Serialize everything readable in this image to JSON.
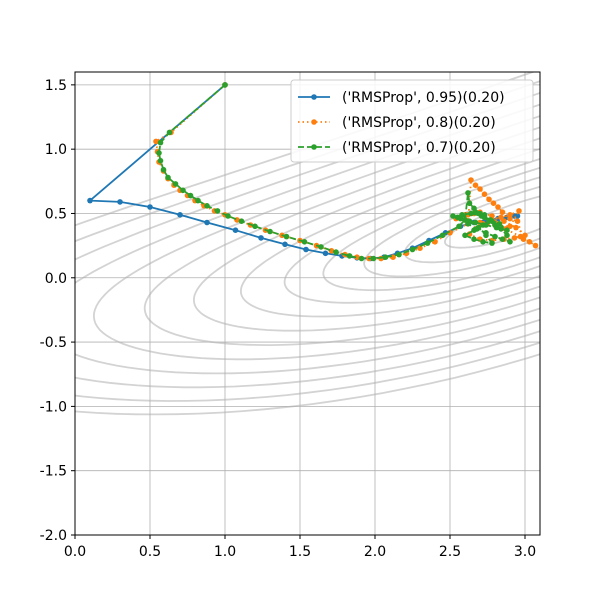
{
  "chart_data": {
    "type": "line",
    "title": "",
    "xlabel": "",
    "ylabel": "",
    "xlim": [
      0.0,
      3.1
    ],
    "ylim": [
      -2.0,
      1.6
    ],
    "grid": true,
    "legend_position": "top-right",
    "x_ticks": [
      0.0,
      0.5,
      1.0,
      1.5,
      2.0,
      2.5,
      3.0
    ],
    "x_tick_labels": [
      "0.0",
      "0.5",
      "1.0",
      "1.5",
      "2.0",
      "2.5",
      "3.0"
    ],
    "y_ticks": [
      1.5,
      1.0,
      0.5,
      0.0,
      -0.5,
      -1.0,
      -1.5,
      -2.0
    ],
    "y_tick_labels": [
      "1.5",
      "1.0",
      "0.5",
      "0.0",
      "-0.5",
      "-1.0",
      "-1.5",
      "-2.0"
    ],
    "contour": {
      "description": "Light grey contour lines of the objective surface, minimum near (2.9, 0.45)",
      "color": "#d3d3d3",
      "center": [
        2.95,
        0.45
      ],
      "levels": [
        0.05,
        0.12,
        0.22,
        0.35,
        0.5,
        0.7,
        0.95,
        1.25,
        1.6,
        2.0,
        2.45,
        2.95,
        3.5
      ]
    },
    "series": [
      {
        "name": "('RMSProp', 0.95)(0.20)",
        "color": "#1f77b4",
        "line_style": "solid",
        "marker": "circle",
        "points": [
          [
            1.0,
            1.5
          ],
          [
            0.1,
            0.6
          ],
          [
            0.3,
            0.59
          ],
          [
            0.5,
            0.55
          ],
          [
            0.7,
            0.49
          ],
          [
            0.88,
            0.43
          ],
          [
            1.07,
            0.37
          ],
          [
            1.24,
            0.31
          ],
          [
            1.4,
            0.26
          ],
          [
            1.54,
            0.22
          ],
          [
            1.67,
            0.19
          ],
          [
            1.78,
            0.17
          ],
          [
            1.88,
            0.155
          ],
          [
            1.97,
            0.15
          ],
          [
            2.06,
            0.16
          ],
          [
            2.15,
            0.19
          ],
          [
            2.25,
            0.23
          ],
          [
            2.36,
            0.29
          ],
          [
            2.47,
            0.35
          ],
          [
            2.57,
            0.4
          ],
          [
            2.66,
            0.43
          ],
          [
            2.74,
            0.45
          ],
          [
            2.82,
            0.46
          ],
          [
            2.88,
            0.47
          ],
          [
            2.93,
            0.48
          ],
          [
            2.95,
            0.48
          ]
        ]
      },
      {
        "name": "('RMSProp', 0.8)(0.20)",
        "color": "#ff7f0e",
        "line_style": "dotted",
        "marker": "circle",
        "points": [
          [
            1.0,
            1.5
          ],
          [
            0.64,
            1.13
          ],
          [
            0.54,
            1.06
          ],
          [
            0.55,
            0.98
          ],
          [
            0.56,
            0.9
          ],
          [
            0.59,
            0.83
          ],
          [
            0.62,
            0.77
          ],
          [
            0.66,
            0.72
          ],
          [
            0.7,
            0.68
          ],
          [
            0.75,
            0.64
          ],
          [
            0.8,
            0.6
          ],
          [
            0.86,
            0.56
          ],
          [
            0.93,
            0.52
          ],
          [
            1.0,
            0.49
          ],
          [
            1.08,
            0.45
          ],
          [
            1.17,
            0.41
          ],
          [
            1.27,
            0.37
          ],
          [
            1.38,
            0.33
          ],
          [
            1.5,
            0.29
          ],
          [
            1.61,
            0.25
          ],
          [
            1.71,
            0.21
          ],
          [
            1.8,
            0.18
          ],
          [
            1.88,
            0.16
          ],
          [
            1.96,
            0.15
          ],
          [
            2.04,
            0.15
          ],
          [
            2.12,
            0.16
          ],
          [
            2.21,
            0.19
          ],
          [
            2.3,
            0.23
          ],
          [
            2.4,
            0.28
          ],
          [
            2.5,
            0.35
          ],
          [
            2.62,
            0.42
          ],
          [
            2.64,
            0.76
          ],
          [
            2.67,
            0.72
          ],
          [
            2.7,
            0.69
          ],
          [
            2.73,
            0.65
          ],
          [
            2.76,
            0.61
          ],
          [
            2.79,
            0.58
          ],
          [
            2.82,
            0.55
          ],
          [
            2.85,
            0.51
          ],
          [
            2.9,
            0.46
          ],
          [
            2.95,
            0.44
          ],
          [
            2.99,
            0.3
          ],
          [
            3.03,
            0.28
          ],
          [
            3.07,
            0.25
          ],
          [
            2.97,
            0.32
          ],
          [
            2.87,
            0.38
          ],
          [
            2.8,
            0.43
          ],
          [
            2.73,
            0.47
          ],
          [
            2.66,
            0.5
          ],
          [
            2.6,
            0.49
          ],
          [
            2.57,
            0.47
          ],
          [
            2.54,
            0.46
          ],
          [
            2.6,
            0.45
          ],
          [
            2.7,
            0.43
          ],
          [
            2.8,
            0.41
          ],
          [
            2.9,
            0.4
          ],
          [
            2.96,
            0.52
          ],
          [
            2.9,
            0.49
          ],
          [
            2.84,
            0.47
          ],
          [
            2.78,
            0.45
          ],
          [
            2.72,
            0.42
          ],
          [
            2.67,
            0.38
          ],
          [
            2.63,
            0.34
          ],
          [
            2.7,
            0.3
          ],
          [
            2.78,
            0.29
          ],
          [
            2.86,
            0.3
          ],
          [
            2.93,
            0.31
          ],
          [
            3.0,
            0.33
          ],
          [
            2.94,
            0.39
          ],
          [
            2.86,
            0.44
          ],
          [
            2.78,
            0.48
          ],
          [
            2.7,
            0.51
          ],
          [
            2.62,
            0.49
          ]
        ]
      },
      {
        "name": "('RMSProp', 0.7)(0.20)",
        "color": "#2ca02c",
        "line_style": "dashed",
        "marker": "circle",
        "points": [
          [
            1.0,
            1.5
          ],
          [
            0.63,
            1.13
          ],
          [
            0.57,
            1.05
          ],
          [
            0.56,
            0.97
          ],
          [
            0.57,
            0.91
          ],
          [
            0.59,
            0.84
          ],
          [
            0.62,
            0.78
          ],
          [
            0.67,
            0.73
          ],
          [
            0.72,
            0.68
          ],
          [
            0.77,
            0.64
          ],
          [
            0.82,
            0.6
          ],
          [
            0.88,
            0.56
          ],
          [
            0.95,
            0.52
          ],
          [
            1.02,
            0.48
          ],
          [
            1.11,
            0.44
          ],
          [
            1.2,
            0.4
          ],
          [
            1.3,
            0.36
          ],
          [
            1.41,
            0.32
          ],
          [
            1.53,
            0.28
          ],
          [
            1.64,
            0.24
          ],
          [
            1.74,
            0.2
          ],
          [
            1.83,
            0.17
          ],
          [
            1.91,
            0.15
          ],
          [
            1.99,
            0.15
          ],
          [
            2.07,
            0.16
          ],
          [
            2.16,
            0.18
          ],
          [
            2.25,
            0.22
          ],
          [
            2.35,
            0.27
          ],
          [
            2.45,
            0.33
          ],
          [
            2.56,
            0.4
          ],
          [
            2.6,
            0.45
          ],
          [
            2.62,
            0.66
          ],
          [
            2.63,
            0.58
          ],
          [
            2.66,
            0.54
          ],
          [
            2.7,
            0.5
          ],
          [
            2.73,
            0.47
          ],
          [
            2.76,
            0.44
          ],
          [
            2.8,
            0.41
          ],
          [
            2.84,
            0.38
          ],
          [
            2.88,
            0.33
          ],
          [
            2.9,
            0.28
          ],
          [
            2.85,
            0.3
          ],
          [
            2.8,
            0.32
          ],
          [
            2.74,
            0.35
          ],
          [
            2.68,
            0.38
          ],
          [
            2.62,
            0.42
          ],
          [
            2.57,
            0.46
          ],
          [
            2.52,
            0.48
          ],
          [
            2.55,
            0.47
          ],
          [
            2.6,
            0.45
          ],
          [
            2.67,
            0.43
          ],
          [
            2.74,
            0.41
          ],
          [
            2.81,
            0.39
          ],
          [
            2.88,
            0.37
          ],
          [
            2.83,
            0.42
          ],
          [
            2.77,
            0.45
          ],
          [
            2.71,
            0.48
          ],
          [
            2.64,
            0.5
          ],
          [
            2.58,
            0.49
          ],
          [
            2.63,
            0.44
          ],
          [
            2.69,
            0.39
          ],
          [
            2.74,
            0.33
          ],
          [
            2.78,
            0.27
          ],
          [
            2.72,
            0.28
          ],
          [
            2.66,
            0.3
          ],
          [
            2.6,
            0.33
          ],
          [
            2.66,
            0.37
          ],
          [
            2.72,
            0.41
          ],
          [
            2.78,
            0.44
          ],
          [
            2.73,
            0.49
          ],
          [
            2.67,
            0.51
          ]
        ]
      }
    ]
  }
}
